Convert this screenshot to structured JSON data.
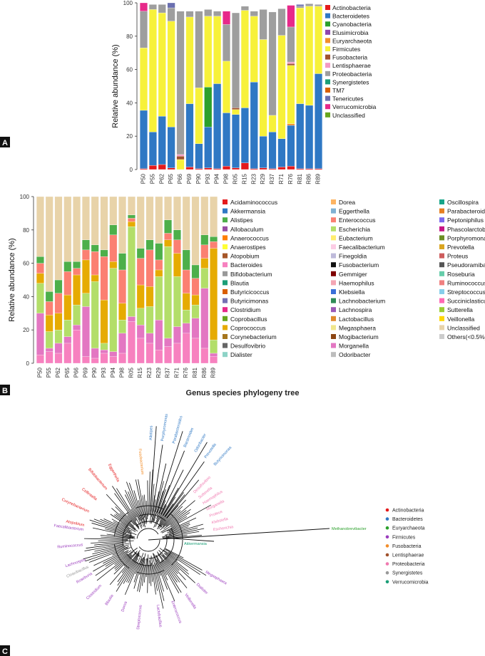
{
  "panels": [
    "A",
    "B",
    "C"
  ],
  "colors": {
    "Actinobacteria": "#e41a1c",
    "Bacteroidetes": "#2f78c4",
    "Cyanobacteria": "#2ca02c",
    "Elusimicrobia": "#8e44ad",
    "Euryarchaeota": "#f28e2b",
    "Firmicutes": "#f7f13a",
    "Fusobacteria": "#a0522d",
    "Lentisphaerae": "#f49ac2",
    "Proteobacteria": "#9e9e9e",
    "Synergistetes": "#1b9e77",
    "TM7": "#d95f02",
    "Tenericutes": "#6a6fb0",
    "Verrucomicrobia": "#e7298a",
    "Unclassified": "#66a61e"
  },
  "chart_data": [
    {
      "panel": "A",
      "type": "bar",
      "stacked": true,
      "ylabel": "Relative abundance (%)",
      "ylim": [
        0,
        100
      ],
      "yticks": [
        0,
        20,
        40,
        60,
        80,
        100
      ],
      "categories": [
        "P50",
        "P55",
        "P62",
        "P65",
        "P66",
        "P69",
        "P90",
        "P93",
        "P94",
        "P98",
        "R05",
        "R15",
        "R23",
        "R29",
        "R37",
        "R71",
        "R76",
        "R81",
        "R86",
        "R89"
      ],
      "series": [
        {
          "name": "Actinobacteria",
          "values": [
            0.5,
            2.5,
            3,
            1,
            0,
            1.5,
            0.5,
            1,
            0.5,
            2,
            1,
            4,
            0.5,
            1,
            0.5,
            1.5,
            2,
            0.5,
            0.5,
            0.5
          ]
        },
        {
          "name": "Bacteroidetes",
          "values": [
            35,
            20,
            29,
            24.5,
            0,
            38,
            15,
            24.5,
            51,
            32,
            32,
            33,
            52,
            19,
            22,
            17,
            24.5,
            39,
            38,
            57
          ]
        },
        {
          "name": "Cyanobacteria",
          "values": [
            0,
            0,
            0,
            0,
            0,
            0,
            0,
            24,
            0,
            0,
            0,
            0,
            0,
            0,
            0,
            0,
            0,
            0,
            0,
            0
          ]
        },
        {
          "name": "Euryarchaeota",
          "values": [
            0,
            0,
            0,
            0,
            0,
            0,
            0,
            0,
            0,
            0,
            0,
            0,
            0,
            0,
            0,
            0,
            1,
            0,
            0,
            0
          ]
        },
        {
          "name": "Firmicutes",
          "values": [
            37.5,
            73.5,
            62,
            63.5,
            6,
            52,
            33.5,
            42.5,
            40.5,
            31,
            3,
            58.5,
            39.5,
            58,
            10,
            62,
            35,
            57.5,
            59.5,
            40.5
          ]
        },
        {
          "name": "Fusobacteria",
          "values": [
            0,
            0,
            0,
            0,
            2,
            0,
            0,
            0,
            0,
            0,
            1,
            0,
            0,
            0,
            0,
            0,
            1,
            0,
            0,
            0
          ]
        },
        {
          "name": "Lentisphaerae",
          "values": [
            0,
            0,
            0,
            0,
            1,
            0,
            0,
            0,
            0,
            0,
            0,
            0,
            0,
            0,
            0,
            0,
            1,
            0,
            0,
            0
          ]
        },
        {
          "name": "Proteobacteria",
          "values": [
            22,
            3,
            5,
            8,
            86,
            3.5,
            46,
            4,
            3,
            22,
            57,
            2.5,
            3,
            18,
            62,
            16,
            21,
            1,
            1.5,
            1
          ]
        },
        {
          "name": "Tenericutes",
          "values": [
            0,
            0,
            0,
            3,
            0,
            0,
            0,
            0,
            0,
            0,
            0,
            0,
            0,
            0,
            0,
            0,
            0,
            1,
            0,
            0
          ]
        },
        {
          "name": "Verrucomicrobia",
          "values": [
            5,
            0,
            0,
            0,
            0,
            0,
            0,
            0,
            0,
            8,
            0,
            0,
            0,
            0,
            0,
            0,
            13,
            0,
            0,
            0
          ]
        },
        {
          "name": "Unclassified",
          "values": [
            0,
            0,
            0,
            0,
            0,
            0,
            0,
            0,
            0,
            0,
            0,
            0,
            0,
            0,
            0,
            0,
            0,
            0,
            0,
            0
          ]
        }
      ],
      "legend": [
        "Actinobacteria",
        "Bacteroidetes",
        "Cyanobacteria",
        "Elusimicrobia",
        "Euryarchaeota",
        "Firmicutes",
        "Fusobacteria",
        "Lentisphaerae",
        "Proteobacteria",
        "Synergistetes",
        "TM7",
        "Tenericutes",
        "Verrucomicrobia",
        "Unclassified"
      ],
      "legend_position": "right"
    },
    {
      "panel": "B",
      "type": "bar",
      "stacked": true,
      "ylabel": "Relative abundance (%)",
      "ylim": [
        0,
        100
      ],
      "yticks": [
        0,
        20,
        40,
        60,
        80,
        100
      ],
      "categories": [
        "P50",
        "P55",
        "P62",
        "P65",
        "P66",
        "P69",
        "P90",
        "P93",
        "P94",
        "P98",
        "R05",
        "R15",
        "R23",
        "R29",
        "R37",
        "R71",
        "R76",
        "R81",
        "R86",
        "R89"
      ],
      "series": [
        {
          "name": "Bacteroides",
          "values": [
            5,
            7,
            6,
            12,
            20,
            4,
            3,
            6,
            4,
            6,
            25,
            15,
            12,
            8,
            10,
            12,
            18,
            15,
            9,
            4
          ]
        },
        {
          "name": "Morganella",
          "values": [
            25,
            2,
            6,
            4,
            3,
            30,
            6,
            2,
            3,
            12,
            3,
            8,
            6,
            18,
            5,
            10,
            6,
            12,
            36,
            2
          ]
        },
        {
          "name": "Escherichia",
          "values": [
            18,
            10,
            8,
            10,
            12,
            8,
            40,
            4,
            50,
            8,
            54,
            10,
            16,
            26,
            55,
            30,
            8,
            8,
            12,
            8
          ]
        },
        {
          "name": "Coprococcus",
          "values": [
            6,
            10,
            10,
            15,
            18,
            20,
            4,
            26,
            4,
            10,
            3,
            14,
            12,
            4,
            4,
            14,
            10,
            6,
            6,
            55
          ]
        },
        {
          "name": "Enterococcus",
          "values": [
            6,
            8,
            12,
            14,
            4,
            6,
            14,
            26,
            16,
            20,
            2,
            16,
            22,
            6,
            4,
            8,
            14,
            10,
            8,
            4
          ]
        },
        {
          "name": "Alistipes",
          "values": [
            4,
            6,
            8,
            6,
            4,
            6,
            4,
            4,
            6,
            10,
            2,
            6,
            6,
            10,
            8,
            6,
            12,
            8,
            6,
            3
          ]
        },
        {
          "name": "Unclassified",
          "values": [
            36,
            57,
            50,
            39,
            39,
            26,
            29,
            32,
            17,
            34,
            11,
            31,
            26,
            28,
            14,
            20,
            32,
            41,
            23,
            24
          ]
        }
      ],
      "legend": [
        "Acidaminococcus",
        "Akkermansia",
        "Alistipes",
        "Allobaculum",
        "Anaerococcus",
        "Anaerostipes",
        "Atopobium",
        "Bacteroides",
        "Bifidobacterium",
        "Blautia",
        "Butyricicoccus",
        "Butyricimonas",
        "Clostridium",
        "Coprobacillus",
        "Coprococcus",
        "Corynebacterium",
        "Desulfovibrio",
        "Dialister",
        "Dorea",
        "Eggerthella",
        "Enterococcus",
        "Escherichia",
        "Eubacterium",
        "Faecalibacterium",
        "Finegoldia",
        "Fusobacterium",
        "Gemmiger",
        "Haemophilus",
        "Klebsiella",
        "Lachnobacterium",
        "Lachnospira",
        "Lactobacillus",
        "Megasphaera",
        "Mogibacterium",
        "Morganella",
        "Odoribacter",
        "Oscillospira",
        "Parabacteroides",
        "Peptoniphilus",
        "Phascolarctobacterium",
        "Porphyromonas",
        "Prevotella",
        "Proteus",
        "Pseudoramibacter",
        "Roseburia",
        "Ruminococcus",
        "Streptococcus",
        "Succiniclasticum",
        "Sutterella",
        "Veillonella",
        "Unclassified",
        "Others(<0.5%)"
      ],
      "legend_colors": [
        "#e41a1c",
        "#2f78c4",
        "#4daf4a",
        "#984ea3",
        "#ff7f00",
        "#ffff33",
        "#a65628",
        "#f781bf",
        "#999999",
        "#1b9e77",
        "#d95f02",
        "#7570b3",
        "#e7298a",
        "#66a61e",
        "#e6ab02",
        "#a6761d",
        "#666666",
        "#8dd3c7",
        "#fdb462",
        "#80b1d3",
        "#fb8072",
        "#b3de69",
        "#ffed6f",
        "#fccde5",
        "#bebada",
        "#111111",
        "#7f0000",
        "#f4a6b4",
        "#3a6fd8",
        "#2e8b57",
        "#9b59b6",
        "#e08a2c",
        "#f0e68c",
        "#8b4513",
        "#e377c2",
        "#bdbdbd",
        "#17a589",
        "#e67e22",
        "#7b68ee",
        "#c71585",
        "#6b8e23",
        "#daa520",
        "#cd5c5c",
        "#555555",
        "#66cdaa",
        "#f08080",
        "#87ceeb",
        "#ff69b4",
        "#9acd32",
        "#ffd700",
        "#e8d3a9",
        "#cccccc"
      ],
      "legend_position": "right"
    },
    {
      "panel": "C",
      "type": "tree",
      "title": "Genus species phylogeny tree",
      "legend": [
        "Actinobacteria",
        "Bacteroidetes",
        "Euryarchaeota",
        "Firmicutes",
        "Fusobacteria",
        "Lentisphaerae",
        "Proteobacteria",
        "Synergistetes",
        "Verrucomicrobia"
      ],
      "legend_colors": [
        "#e41a1c",
        "#2f78c4",
        "#2ca02c",
        "#9b3dbd",
        "#f28e2b",
        "#a0522d",
        "#f07ab0",
        "#999999",
        "#1b9e77"
      ],
      "labeled_leaves": [
        {
          "text": "Methanobrevibacter",
          "group": "Euryarchaeota"
        },
        {
          "text": "Akkermansia",
          "group": "Verrucomicrobia"
        },
        {
          "text": "Fusobacterium",
          "group": "Fusobacteria"
        },
        {
          "text": "Butyricimonas",
          "group": "Bacteroidetes"
        },
        {
          "text": "Prevotella",
          "group": "Bacteroidetes"
        },
        {
          "text": "Odoribacter",
          "group": "Bacteroidetes"
        },
        {
          "text": "Bacteroides",
          "group": "Bacteroidetes"
        },
        {
          "text": "Parabacteroides",
          "group": "Bacteroidetes"
        },
        {
          "text": "Porphyromonas",
          "group": "Bacteroidetes"
        },
        {
          "text": "Alistipes",
          "group": "Bacteroidetes"
        },
        {
          "text": "Eggerthella",
          "group": "Actinobacteria"
        },
        {
          "text": "Bifidobacterium",
          "group": "Actinobacteria"
        },
        {
          "text": "Collinsella",
          "group": "Actinobacteria"
        },
        {
          "text": "Corynebacterium",
          "group": "Actinobacteria"
        },
        {
          "text": "Atopobium",
          "group": "Actinobacteria"
        },
        {
          "text": "Faecalibacterium",
          "group": "Firmicutes"
        },
        {
          "text": "Ruminococcus",
          "group": "Firmicutes"
        },
        {
          "text": "Lachnospira",
          "group": "Firmicutes"
        },
        {
          "text": "Roseburia",
          "group": "Firmicutes"
        },
        {
          "text": "Clostridium",
          "group": "Firmicutes"
        },
        {
          "text": "Blautia",
          "group": "Firmicutes"
        },
        {
          "text": "Dorea",
          "group": "Firmicutes"
        },
        {
          "text": "Streptococcus",
          "group": "Firmicutes"
        },
        {
          "text": "Lactobacillus",
          "group": "Firmicutes"
        },
        {
          "text": "Enterococcus",
          "group": "Firmicutes"
        },
        {
          "text": "Veillonella",
          "group": "Firmicutes"
        },
        {
          "text": "Dialister",
          "group": "Firmicutes"
        },
        {
          "text": "Megasphaera",
          "group": "Firmicutes"
        },
        {
          "text": "Escherichia",
          "group": "Proteobacteria"
        },
        {
          "text": "Klebsiella",
          "group": "Proteobacteria"
        },
        {
          "text": "Proteus",
          "group": "Proteobacteria"
        },
        {
          "text": "Morganella",
          "group": "Proteobacteria"
        },
        {
          "text": "Haemophilus",
          "group": "Proteobacteria"
        },
        {
          "text": "Sutterella",
          "group": "Proteobacteria"
        },
        {
          "text": "Desulfovibrio",
          "group": "Proteobacteria"
        },
        {
          "text": "Cloacibacillus",
          "group": "Synergistetes"
        }
      ]
    }
  ]
}
